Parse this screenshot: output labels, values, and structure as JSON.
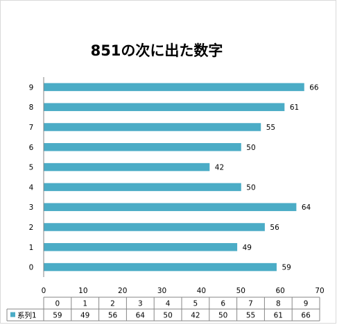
{
  "chart_data": {
    "type": "bar",
    "orientation": "horizontal",
    "title": "851の次に出た数字",
    "categories": [
      "0",
      "1",
      "2",
      "3",
      "4",
      "5",
      "6",
      "7",
      "8",
      "9"
    ],
    "series": [
      {
        "name": "系列1",
        "values": [
          59,
          49,
          56,
          64,
          50,
          42,
          50,
          55,
          61,
          66
        ]
      }
    ],
    "xlim": [
      0,
      70
    ],
    "x_ticks": [
      0,
      10,
      20,
      30,
      40,
      50,
      60,
      70
    ],
    "grid": false,
    "data_labels": true,
    "data_table": true,
    "bar_color": "#4bacc6"
  }
}
